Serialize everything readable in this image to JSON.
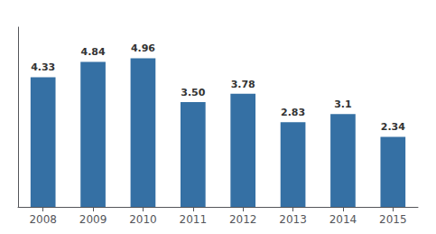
{
  "chart_data": {
    "type": "bar",
    "categories": [
      "2008",
      "2009",
      "2010",
      "2011",
      "2012",
      "2013",
      "2014",
      "2015"
    ],
    "values": [
      4.33,
      4.84,
      4.96,
      3.5,
      3.78,
      2.83,
      3.1,
      2.34
    ],
    "value_labels": [
      "4.33",
      "4.84",
      "4.96",
      "3.50",
      "3.78",
      "2.83",
      "3.1",
      "2.34"
    ],
    "data_labels": true,
    "color": "#3570a4",
    "ylim": [
      0,
      6.0
    ],
    "tick_labels": "x",
    "grid": false
  }
}
